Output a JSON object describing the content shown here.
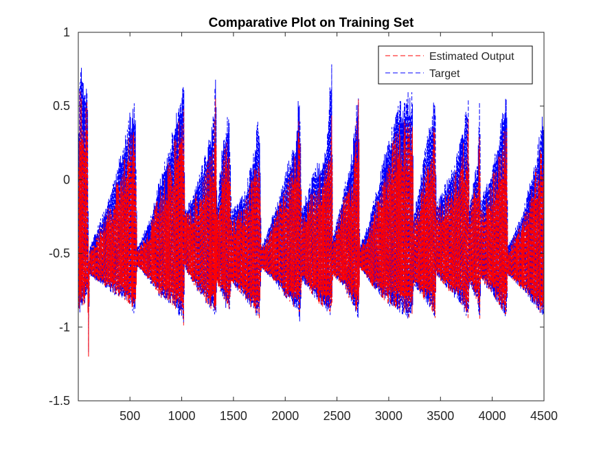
{
  "chart_data": {
    "type": "line",
    "title": "Comparative Plot on Training Set",
    "xlabel": "",
    "ylabel": "",
    "xlim": [
      1,
      4500
    ],
    "ylim": [
      -1.5,
      1
    ],
    "xticks": [
      500,
      1000,
      1500,
      2000,
      2500,
      3000,
      3500,
      4000,
      4500
    ],
    "yticks": [
      -1.5,
      -1,
      -0.5,
      0,
      0.5,
      1
    ],
    "xtick_labels": [
      "500",
      "1000",
      "1500",
      "2000",
      "2500",
      "3000",
      "3500",
      "4000",
      "4500"
    ],
    "ytick_labels": [
      "-1.5",
      "-1",
      "-0.5",
      "0",
      "0.5",
      "1"
    ],
    "grid": false,
    "legend_position": "top-right",
    "series": [
      {
        "name": "Estimated Output",
        "color": "#ff0000",
        "style": "dashed"
      },
      {
        "name": "Target",
        "color": "#0000ff",
        "style": "dashed"
      }
    ],
    "envelope": {
      "x": [
        1,
        20,
        60,
        90,
        100,
        110,
        200,
        300,
        400,
        500,
        550,
        570,
        580,
        700,
        800,
        900,
        1000,
        1020,
        1030,
        1100,
        1200,
        1300,
        1330,
        1340,
        1350,
        1400,
        1460,
        1480,
        1600,
        1700,
        1750,
        1770,
        1900,
        2000,
        2100,
        2140,
        2160,
        2200,
        2300,
        2400,
        2450,
        2460,
        2550,
        2650,
        2710,
        2720,
        2800,
        2900,
        3000,
        3100,
        3200,
        3230,
        3240,
        3300,
        3420,
        3450,
        3460,
        3600,
        3700,
        3770,
        3780,
        3860,
        3880,
        3890,
        4000,
        4100,
        4140,
        4150,
        4300,
        4400,
        4500
      ],
      "upper": [
        0.3,
        0.85,
        0.6,
        0.7,
        -0.5,
        -0.45,
        -0.3,
        -0.1,
        0.15,
        0.45,
        0.55,
        -0.45,
        -0.45,
        -0.25,
        0.05,
        0.3,
        0.65,
        0.75,
        -0.2,
        -0.1,
        0.1,
        0.4,
        0.8,
        -0.15,
        -0.1,
        0.3,
        0.5,
        -0.2,
        -0.1,
        0.2,
        0.5,
        -0.45,
        -0.2,
        0.05,
        0.3,
        0.7,
        -0.2,
        -0.1,
        0.1,
        0.25,
        0.85,
        -0.4,
        -0.1,
        0.2,
        0.75,
        -0.45,
        -0.3,
        0.0,
        0.3,
        0.55,
        0.6,
        0.65,
        -0.25,
        0.0,
        0.5,
        0.6,
        -0.15,
        0.05,
        0.3,
        0.6,
        -0.15,
        0.15,
        0.6,
        -0.15,
        0.1,
        0.45,
        0.65,
        -0.45,
        -0.2,
        0.1,
        0.5
      ],
      "lower": [
        -0.95,
        -0.9,
        -0.85,
        -0.8,
        -1.2,
        -0.65,
        -0.7,
        -0.75,
        -0.8,
        -0.85,
        -0.95,
        -0.6,
        -0.6,
        -0.7,
        -0.8,
        -0.85,
        -0.95,
        -1.0,
        -0.6,
        -0.7,
        -0.8,
        -0.9,
        -0.95,
        -0.7,
        -0.72,
        -0.82,
        -0.92,
        -0.7,
        -0.8,
        -0.9,
        -0.95,
        -0.6,
        -0.7,
        -0.8,
        -0.88,
        -0.95,
        -0.7,
        -0.72,
        -0.82,
        -0.9,
        -0.95,
        -0.65,
        -0.72,
        -0.85,
        -0.95,
        -0.6,
        -0.68,
        -0.78,
        -0.85,
        -0.9,
        -0.95,
        -0.95,
        -0.72,
        -0.78,
        -0.9,
        -0.95,
        -0.65,
        -0.78,
        -0.85,
        -0.95,
        -0.7,
        -0.85,
        -0.95,
        -0.68,
        -0.78,
        -0.9,
        -0.95,
        -0.65,
        -0.75,
        -0.85,
        -0.95
      ]
    }
  }
}
